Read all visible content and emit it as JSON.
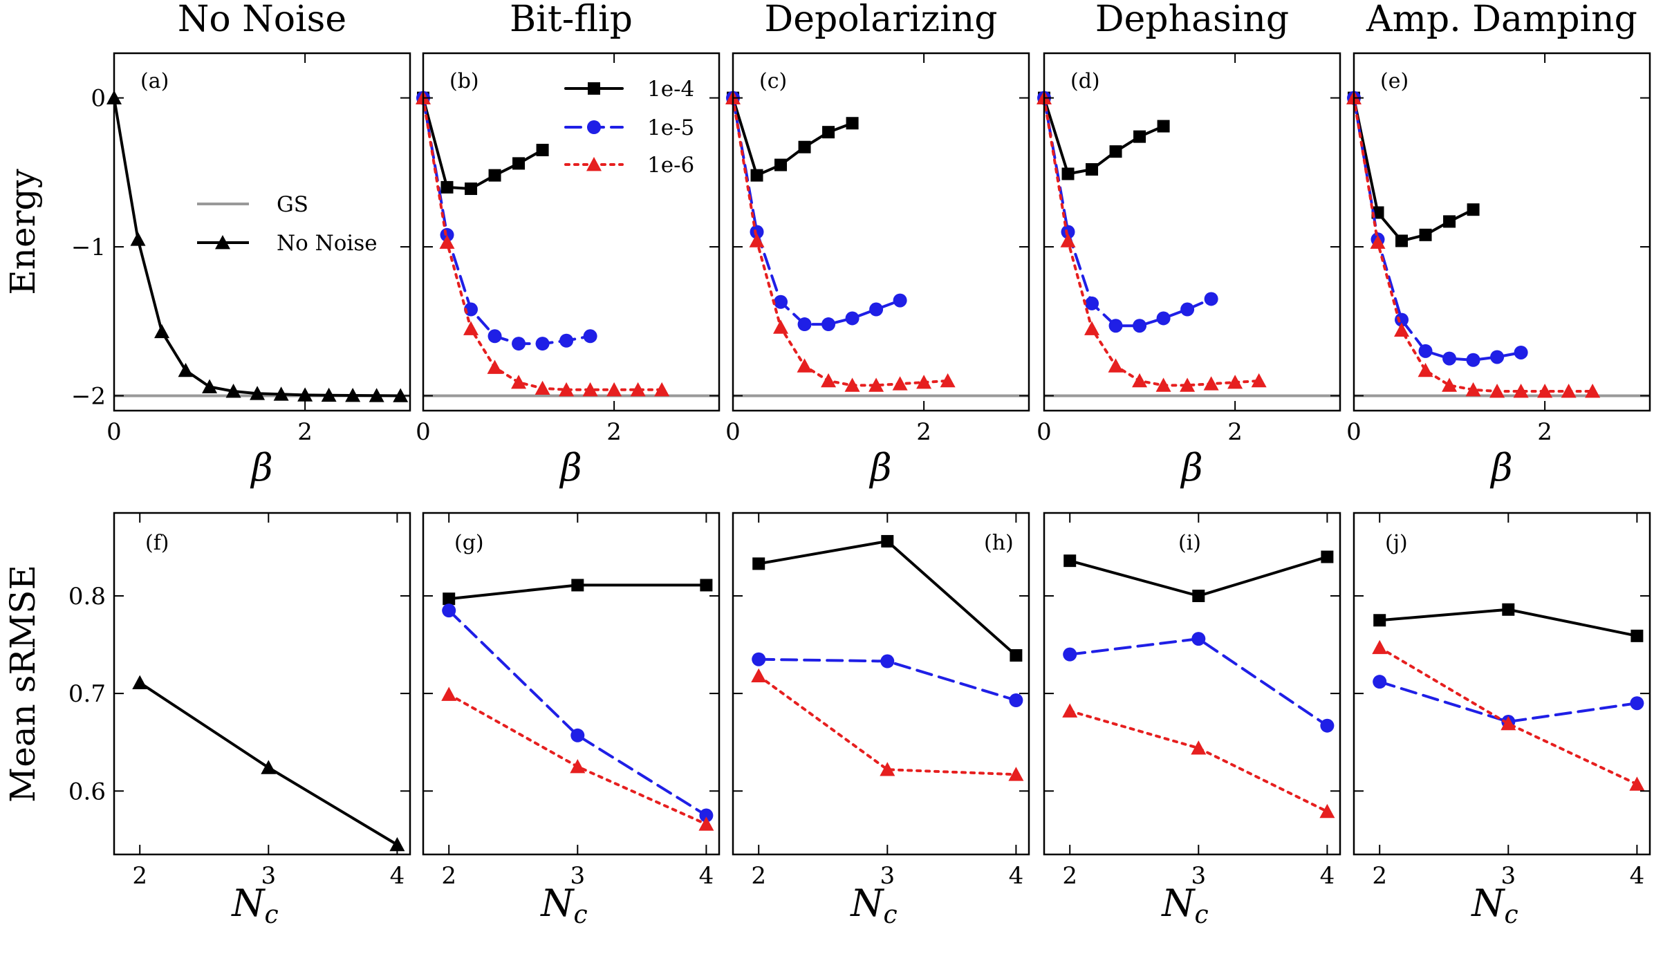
{
  "figure": {
    "columns": [
      "No Noise",
      "Bit-flip",
      "Depolarizing",
      "Dephasing",
      "Amp. Damping"
    ],
    "top_ylabel": "Energy",
    "bottom_ylabel": "Mean sRMSE",
    "top_xlabel_sym": "β",
    "bottom_xlabel_sym": "N",
    "bottom_xlabel_sub": "c"
  },
  "colors": {
    "1e-4": "#000000",
    "1e-5": "#1f1fe6",
    "1e-6": "#e61f1f",
    "gs": "#999999",
    "no_noise": "#000000"
  },
  "chart_data": [
    {
      "type": "line",
      "id": "a",
      "tag": "(a)",
      "xlabel": "β",
      "ylabel": "Energy",
      "xlim": [
        0,
        3.1
      ],
      "ylim": [
        -2.1,
        0.3
      ],
      "xticks": [
        0,
        2
      ],
      "yticks": [
        0,
        -1,
        -2
      ],
      "xticklabels": [
        "0",
        "2"
      ],
      "yticklabels": [
        "0",
        "−1",
        "−2"
      ],
      "hline": {
        "name": "GS",
        "y": -2
      },
      "legend": [
        "GS",
        "No Noise"
      ],
      "series": [
        {
          "name": "No Noise",
          "marker": "triangle",
          "style": "solid",
          "x": [
            0,
            0.25,
            0.5,
            0.75,
            1.0,
            1.25,
            1.5,
            1.75,
            2.0,
            2.25,
            2.5,
            2.75,
            3.0
          ],
          "y": [
            0,
            -0.95,
            -1.57,
            -1.83,
            -1.94,
            -1.97,
            -1.985,
            -1.99,
            -1.995,
            -1.997,
            -1.998,
            -1.999,
            -2.0
          ]
        }
      ]
    },
    {
      "type": "line",
      "id": "b",
      "tag": "(b)",
      "xlabel": "β",
      "xlim": [
        0,
        3.1
      ],
      "ylim": [
        -2.1,
        0.3
      ],
      "xticks": [
        0,
        2
      ],
      "yticks": [
        0,
        -1,
        -2
      ],
      "xticklabels": [
        "0",
        "2"
      ],
      "hline": {
        "name": "GS",
        "y": -2
      },
      "legend": [
        "1e-4",
        "1e-5",
        "1e-6"
      ],
      "series": [
        {
          "name": "1e-4",
          "marker": "square",
          "style": "solid",
          "x": [
            0,
            0.25,
            0.5,
            0.75,
            1.0,
            1.25
          ],
          "y": [
            0,
            -0.6,
            -0.61,
            -0.52,
            -0.44,
            -0.35
          ]
        },
        {
          "name": "1e-5",
          "marker": "circle",
          "style": "dashed",
          "x": [
            0,
            0.25,
            0.5,
            0.75,
            1.0,
            1.25,
            1.5,
            1.75
          ],
          "y": [
            0,
            -0.92,
            -1.42,
            -1.6,
            -1.65,
            -1.65,
            -1.63,
            -1.6
          ]
        },
        {
          "name": "1e-6",
          "marker": "triangle",
          "style": "dotted",
          "x": [
            0,
            0.25,
            0.5,
            0.75,
            1.0,
            1.25,
            1.5,
            1.75,
            2.0,
            2.25,
            2.5
          ],
          "y": [
            0,
            -0.97,
            -1.55,
            -1.81,
            -1.91,
            -1.95,
            -1.96,
            -1.96,
            -1.96,
            -1.96,
            -1.96
          ]
        }
      ]
    },
    {
      "type": "line",
      "id": "c",
      "tag": "(c)",
      "xlabel": "β",
      "xlim": [
        0,
        3.1
      ],
      "ylim": [
        -2.1,
        0.3
      ],
      "xticks": [
        0,
        2
      ],
      "yticks": [
        0,
        -1,
        -2
      ],
      "xticklabels": [
        "0",
        "2"
      ],
      "hline": {
        "name": "GS",
        "y": -2
      },
      "series": [
        {
          "name": "1e-4",
          "marker": "square",
          "style": "solid",
          "x": [
            0,
            0.25,
            0.5,
            0.75,
            1.0,
            1.25
          ],
          "y": [
            0,
            -0.52,
            -0.45,
            -0.33,
            -0.23,
            -0.17
          ]
        },
        {
          "name": "1e-5",
          "marker": "circle",
          "style": "dashed",
          "x": [
            0,
            0.25,
            0.5,
            0.75,
            1.0,
            1.25,
            1.5,
            1.75
          ],
          "y": [
            0,
            -0.9,
            -1.37,
            -1.52,
            -1.52,
            -1.48,
            -1.42,
            -1.36
          ]
        },
        {
          "name": "1e-6",
          "marker": "triangle",
          "style": "dotted",
          "x": [
            0,
            0.25,
            0.5,
            0.75,
            1.0,
            1.25,
            1.5,
            1.75,
            2.0,
            2.25
          ],
          "y": [
            0,
            -0.96,
            -1.54,
            -1.8,
            -1.9,
            -1.93,
            -1.93,
            -1.92,
            -1.91,
            -1.9
          ]
        }
      ]
    },
    {
      "type": "line",
      "id": "d",
      "tag": "(d)",
      "xlabel": "β",
      "xlim": [
        0,
        3.1
      ],
      "ylim": [
        -2.1,
        0.3
      ],
      "xticks": [
        0,
        2
      ],
      "yticks": [
        0,
        -1,
        -2
      ],
      "xticklabels": [
        "0",
        "2"
      ],
      "hline": {
        "name": "GS",
        "y": -2
      },
      "series": [
        {
          "name": "1e-4",
          "marker": "square",
          "style": "solid",
          "x": [
            0,
            0.25,
            0.5,
            0.75,
            1.0,
            1.25
          ],
          "y": [
            0,
            -0.51,
            -0.48,
            -0.36,
            -0.26,
            -0.19
          ]
        },
        {
          "name": "1e-5",
          "marker": "circle",
          "style": "dashed",
          "x": [
            0,
            0.25,
            0.5,
            0.75,
            1.0,
            1.25,
            1.5,
            1.75
          ],
          "y": [
            0,
            -0.9,
            -1.38,
            -1.53,
            -1.53,
            -1.48,
            -1.42,
            -1.35
          ]
        },
        {
          "name": "1e-6",
          "marker": "triangle",
          "style": "dotted",
          "x": [
            0,
            0.25,
            0.5,
            0.75,
            1.0,
            1.25,
            1.5,
            1.75,
            2.0,
            2.25
          ],
          "y": [
            0,
            -0.96,
            -1.55,
            -1.8,
            -1.9,
            -1.93,
            -1.93,
            -1.92,
            -1.91,
            -1.9
          ]
        }
      ]
    },
    {
      "type": "line",
      "id": "e",
      "tag": "(e)",
      "xlabel": "β",
      "xlim": [
        0,
        3.1
      ],
      "ylim": [
        -2.1,
        0.3
      ],
      "xticks": [
        0,
        2
      ],
      "yticks": [
        0,
        -1,
        -2
      ],
      "xticklabels": [
        "0",
        "2"
      ],
      "hline": {
        "name": "GS",
        "y": -2
      },
      "series": [
        {
          "name": "1e-4",
          "marker": "square",
          "style": "solid",
          "x": [
            0,
            0.25,
            0.5,
            0.75,
            1.0,
            1.25
          ],
          "y": [
            0,
            -0.77,
            -0.96,
            -0.92,
            -0.83,
            -0.75
          ]
        },
        {
          "name": "1e-5",
          "marker": "circle",
          "style": "dashed",
          "x": [
            0,
            0.25,
            0.5,
            0.75,
            1.0,
            1.25,
            1.5,
            1.75
          ],
          "y": [
            0,
            -0.95,
            -1.49,
            -1.7,
            -1.75,
            -1.76,
            -1.74,
            -1.71
          ]
        },
        {
          "name": "1e-6",
          "marker": "triangle",
          "style": "dotted",
          "x": [
            0,
            0.25,
            0.5,
            0.75,
            1.0,
            1.25,
            1.5,
            1.75,
            2.0,
            2.25,
            2.5
          ],
          "y": [
            0,
            -0.97,
            -1.56,
            -1.83,
            -1.93,
            -1.96,
            -1.97,
            -1.97,
            -1.97,
            -1.97,
            -1.97
          ]
        }
      ]
    },
    {
      "type": "line",
      "id": "f",
      "tag": "(f)",
      "xlabel": "N_c",
      "ylabel": "Mean sRMSE",
      "xlim": [
        1.8,
        4.1
      ],
      "ylim": [
        0.535,
        0.885
      ],
      "xticks": [
        2,
        3,
        4
      ],
      "yticks": [
        0.6,
        0.7,
        0.8
      ],
      "xticklabels": [
        "2",
        "3",
        "4"
      ],
      "yticklabels": [
        "0.6",
        "0.7",
        "0.8"
      ],
      "series": [
        {
          "name": "No Noise",
          "marker": "triangle",
          "style": "solid",
          "x": [
            2,
            3,
            4
          ],
          "y": [
            0.711,
            0.624,
            0.545
          ]
        }
      ]
    },
    {
      "type": "line",
      "id": "g",
      "tag": "(g)",
      "xlabel": "N_c",
      "xlim": [
        1.8,
        4.1
      ],
      "ylim": [
        0.535,
        0.885
      ],
      "xticks": [
        2,
        3,
        4
      ],
      "yticks": [
        0.6,
        0.7,
        0.8
      ],
      "xticklabels": [
        "2",
        "3",
        "4"
      ],
      "series": [
        {
          "name": "1e-4",
          "marker": "square",
          "style": "solid",
          "x": [
            2,
            3,
            4
          ],
          "y": [
            0.797,
            0.811,
            0.811
          ]
        },
        {
          "name": "1e-5",
          "marker": "circle",
          "style": "dashed",
          "x": [
            2,
            3,
            4
          ],
          "y": [
            0.785,
            0.657,
            0.575
          ]
        },
        {
          "name": "1e-6",
          "marker": "triangle",
          "style": "dotted",
          "x": [
            2,
            3,
            4
          ],
          "y": [
            0.699,
            0.625,
            0.566
          ]
        }
      ]
    },
    {
      "type": "line",
      "id": "h",
      "tag": "(h)",
      "xlabel": "N_c",
      "xlim": [
        1.8,
        4.1
      ],
      "ylim": [
        0.535,
        0.885
      ],
      "xticks": [
        2,
        3,
        4
      ],
      "yticks": [
        0.6,
        0.7,
        0.8
      ],
      "xticklabels": [
        "2",
        "3",
        "4"
      ],
      "series": [
        {
          "name": "1e-4",
          "marker": "square",
          "style": "solid",
          "x": [
            2,
            3,
            4
          ],
          "y": [
            0.833,
            0.856,
            0.739
          ]
        },
        {
          "name": "1e-5",
          "marker": "circle",
          "style": "dashed",
          "x": [
            2,
            3,
            4
          ],
          "y": [
            0.735,
            0.733,
            0.693
          ]
        },
        {
          "name": "1e-6",
          "marker": "triangle",
          "style": "dotted",
          "x": [
            2,
            3,
            4
          ],
          "y": [
            0.718,
            0.622,
            0.617
          ]
        }
      ]
    },
    {
      "type": "line",
      "id": "i",
      "tag": "(i)",
      "xlabel": "N_c",
      "xlim": [
        1.8,
        4.1
      ],
      "ylim": [
        0.535,
        0.885
      ],
      "xticks": [
        2,
        3,
        4
      ],
      "yticks": [
        0.6,
        0.7,
        0.8
      ],
      "xticklabels": [
        "2",
        "3",
        "4"
      ],
      "series": [
        {
          "name": "1e-4",
          "marker": "square",
          "style": "solid",
          "x": [
            2,
            3,
            4
          ],
          "y": [
            0.836,
            0.8,
            0.84
          ]
        },
        {
          "name": "1e-5",
          "marker": "circle",
          "style": "dashed",
          "x": [
            2,
            3,
            4
          ],
          "y": [
            0.74,
            0.756,
            0.667
          ]
        },
        {
          "name": "1e-6",
          "marker": "triangle",
          "style": "dotted",
          "x": [
            2,
            3,
            4
          ],
          "y": [
            0.682,
            0.644,
            0.579
          ]
        }
      ]
    },
    {
      "type": "line",
      "id": "j",
      "tag": "(j)",
      "xlabel": "N_c",
      "xlim": [
        1.8,
        4.1
      ],
      "ylim": [
        0.535,
        0.885
      ],
      "xticks": [
        2,
        3,
        4
      ],
      "yticks": [
        0.6,
        0.7,
        0.8
      ],
      "xticklabels": [
        "2",
        "3",
        "4"
      ],
      "series": [
        {
          "name": "1e-4",
          "marker": "square",
          "style": "solid",
          "x": [
            2,
            3,
            4
          ],
          "y": [
            0.775,
            0.786,
            0.759
          ]
        },
        {
          "name": "1e-5",
          "marker": "circle",
          "style": "dashed",
          "x": [
            2,
            3,
            4
          ],
          "y": [
            0.712,
            0.671,
            0.69
          ]
        },
        {
          "name": "1e-6",
          "marker": "triangle",
          "style": "dotted",
          "x": [
            2,
            3,
            4
          ],
          "y": [
            0.747,
            0.669,
            0.607
          ]
        }
      ]
    }
  ]
}
